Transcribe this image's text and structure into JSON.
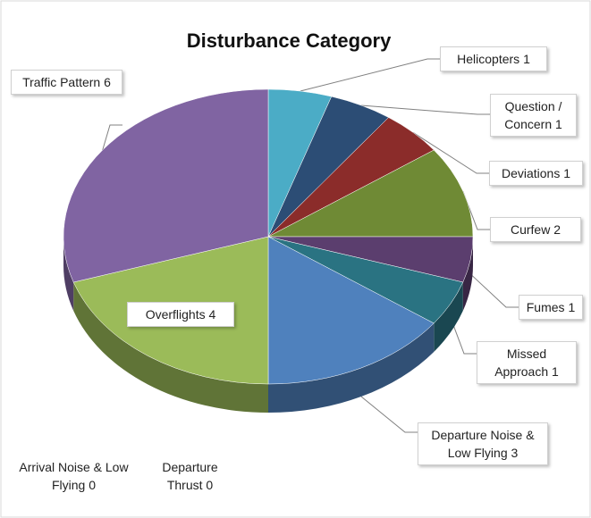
{
  "chart_data": {
    "type": "pie",
    "title": "Disturbance Category",
    "categories": [
      "Helicopters",
      "Question / Concern",
      "Deviations",
      "Curfew",
      "Fumes",
      "Missed Approach",
      "Departure Noise & Low Flying",
      "Overflights",
      "Traffic Pattern",
      "Arrival Noise & Low Flying",
      "Departure Thrust"
    ],
    "values": [
      1,
      1,
      1,
      2,
      1,
      1,
      3,
      4,
      6,
      0,
      0
    ],
    "colors": [
      "#4bacc6",
      "#2c4d75",
      "#8b2c2a",
      "#6f8a35",
      "#5b3e6e",
      "#2a7382",
      "#4f81bd",
      "#9bbb59",
      "#8064a2",
      "#c0504d",
      "#f79646"
    ]
  }
}
